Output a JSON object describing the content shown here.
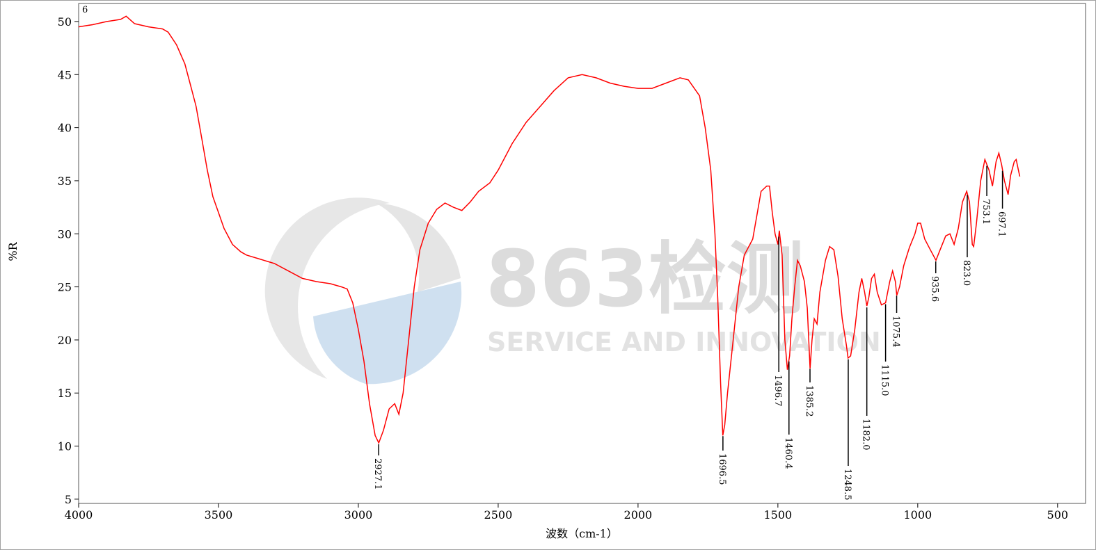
{
  "chart_data": {
    "type": "line",
    "corner_label": "6",
    "y_label": "%R",
    "x_label": "波数（cm-1）",
    "watermark": {
      "brand": "863检测",
      "slogan": "SERVICE AND INNOVATION"
    },
    "color": "#ff0000",
    "xlim": [
      4000,
      400
    ],
    "ylim": [
      4.6,
      51.7
    ],
    "xticks": [
      4000,
      3500,
      3000,
      2500,
      2000,
      1500,
      1000,
      500
    ],
    "yticks": [
      5,
      10,
      15,
      20,
      25,
      30,
      35,
      40,
      45,
      50
    ],
    "x": [
      4000,
      3950,
      3900,
      3850,
      3830,
      3800,
      3750,
      3700,
      3680,
      3650,
      3620,
      3600,
      3580,
      3560,
      3540,
      3520,
      3500,
      3480,
      3450,
      3420,
      3400,
      3350,
      3300,
      3250,
      3200,
      3150,
      3100,
      3060,
      3040,
      3020,
      3000,
      2980,
      2960,
      2940,
      2927,
      2910,
      2890,
      2870,
      2855,
      2840,
      2820,
      2800,
      2780,
      2750,
      2720,
      2690,
      2660,
      2630,
      2600,
      2570,
      2530,
      2500,
      2450,
      2400,
      2350,
      2300,
      2250,
      2200,
      2150,
      2100,
      2050,
      2000,
      1950,
      1900,
      1850,
      1820,
      1780,
      1760,
      1740,
      1725,
      1715,
      1705,
      1697,
      1690,
      1680,
      1660,
      1640,
      1620,
      1600,
      1590,
      1580,
      1560,
      1540,
      1530,
      1520,
      1510,
      1500,
      1495,
      1485,
      1475,
      1466,
      1458,
      1450,
      1440,
      1430,
      1420,
      1405,
      1395,
      1385,
      1378,
      1370,
      1360,
      1350,
      1330,
      1315,
      1300,
      1285,
      1270,
      1255,
      1249,
      1240,
      1225,
      1210,
      1200,
      1190,
      1182,
      1175,
      1165,
      1155,
      1145,
      1130,
      1115,
      1100,
      1090,
      1080,
      1075,
      1065,
      1050,
      1030,
      1010,
      1000,
      990,
      975,
      955,
      935,
      920,
      900,
      885,
      870,
      855,
      840,
      825,
      815,
      805,
      800,
      790,
      775,
      760,
      745,
      733,
      720,
      710,
      700,
      690,
      677,
      668,
      655,
      648,
      640,
      635
    ],
    "values": [
      49.5,
      49.7,
      50.0,
      50.2,
      50.5,
      49.8,
      49.5,
      49.3,
      49.0,
      47.8,
      46,
      44,
      42,
      39,
      36,
      33.5,
      32,
      30.5,
      29,
      28.3,
      28,
      27.6,
      27.2,
      26.5,
      25.8,
      25.5,
      25.3,
      25.0,
      24.8,
      23.5,
      21,
      18,
      14,
      11,
      10.3,
      11.5,
      13.5,
      14,
      13,
      15,
      20,
      25,
      28.5,
      31,
      32.3,
      32.9,
      32.5,
      32.2,
      33,
      34,
      34.8,
      36,
      38.5,
      40.5,
      42,
      43.5,
      44.7,
      45.0,
      44.7,
      44.2,
      43.9,
      43.7,
      43.7,
      44.2,
      44.7,
      44.5,
      43,
      40,
      36,
      30,
      24,
      16,
      11.0,
      12,
      15,
      20,
      25,
      28,
      29,
      29.5,
      31,
      34,
      34.5,
      34.5,
      32,
      30,
      29,
      30.3,
      28,
      20,
      17.2,
      18.5,
      22,
      25,
      27.5,
      27,
      25.5,
      23,
      17.3,
      20,
      22,
      21.5,
      24.5,
      27.5,
      28.8,
      28.5,
      26,
      22,
      19.5,
      18.3,
      18.5,
      21,
      24.5,
      25.8,
      24.5,
      23.2,
      24,
      25.8,
      26.2,
      24.5,
      23.3,
      23.5,
      25.5,
      26.5,
      25.5,
      24.2,
      25,
      27,
      28.7,
      30,
      31,
      31,
      29.5,
      28.5,
      27.5,
      28.5,
      29.8,
      30,
      29,
      30.5,
      33,
      34,
      33,
      29,
      28.8,
      31,
      35,
      37,
      36,
      34.5,
      36.8,
      37.6,
      36.5,
      35,
      33.7,
      35.5,
      36.8,
      37,
      36,
      35.4
    ],
    "peaks": [
      {
        "x": 2927.1,
        "label": "2927.1"
      },
      {
        "x": 1696.5,
        "label": "1696.5"
      },
      {
        "x": 1496.7,
        "label": "1496.7"
      },
      {
        "x": 1460.4,
        "label": "1460.4"
      },
      {
        "x": 1385.2,
        "label": "1385.2"
      },
      {
        "x": 1248.5,
        "label": "1248.5"
      },
      {
        "x": 1182.0,
        "label": "1182.0"
      },
      {
        "x": 1115.0,
        "label": "1115.0"
      },
      {
        "x": 1075.4,
        "label": "1075.4"
      },
      {
        "x": 935.6,
        "label": "935.6"
      },
      {
        "x": 823.0,
        "label": "823.0"
      },
      {
        "x": 753.1,
        "label": "753.1"
      },
      {
        "x": 697.1,
        "label": "697.1"
      }
    ]
  }
}
